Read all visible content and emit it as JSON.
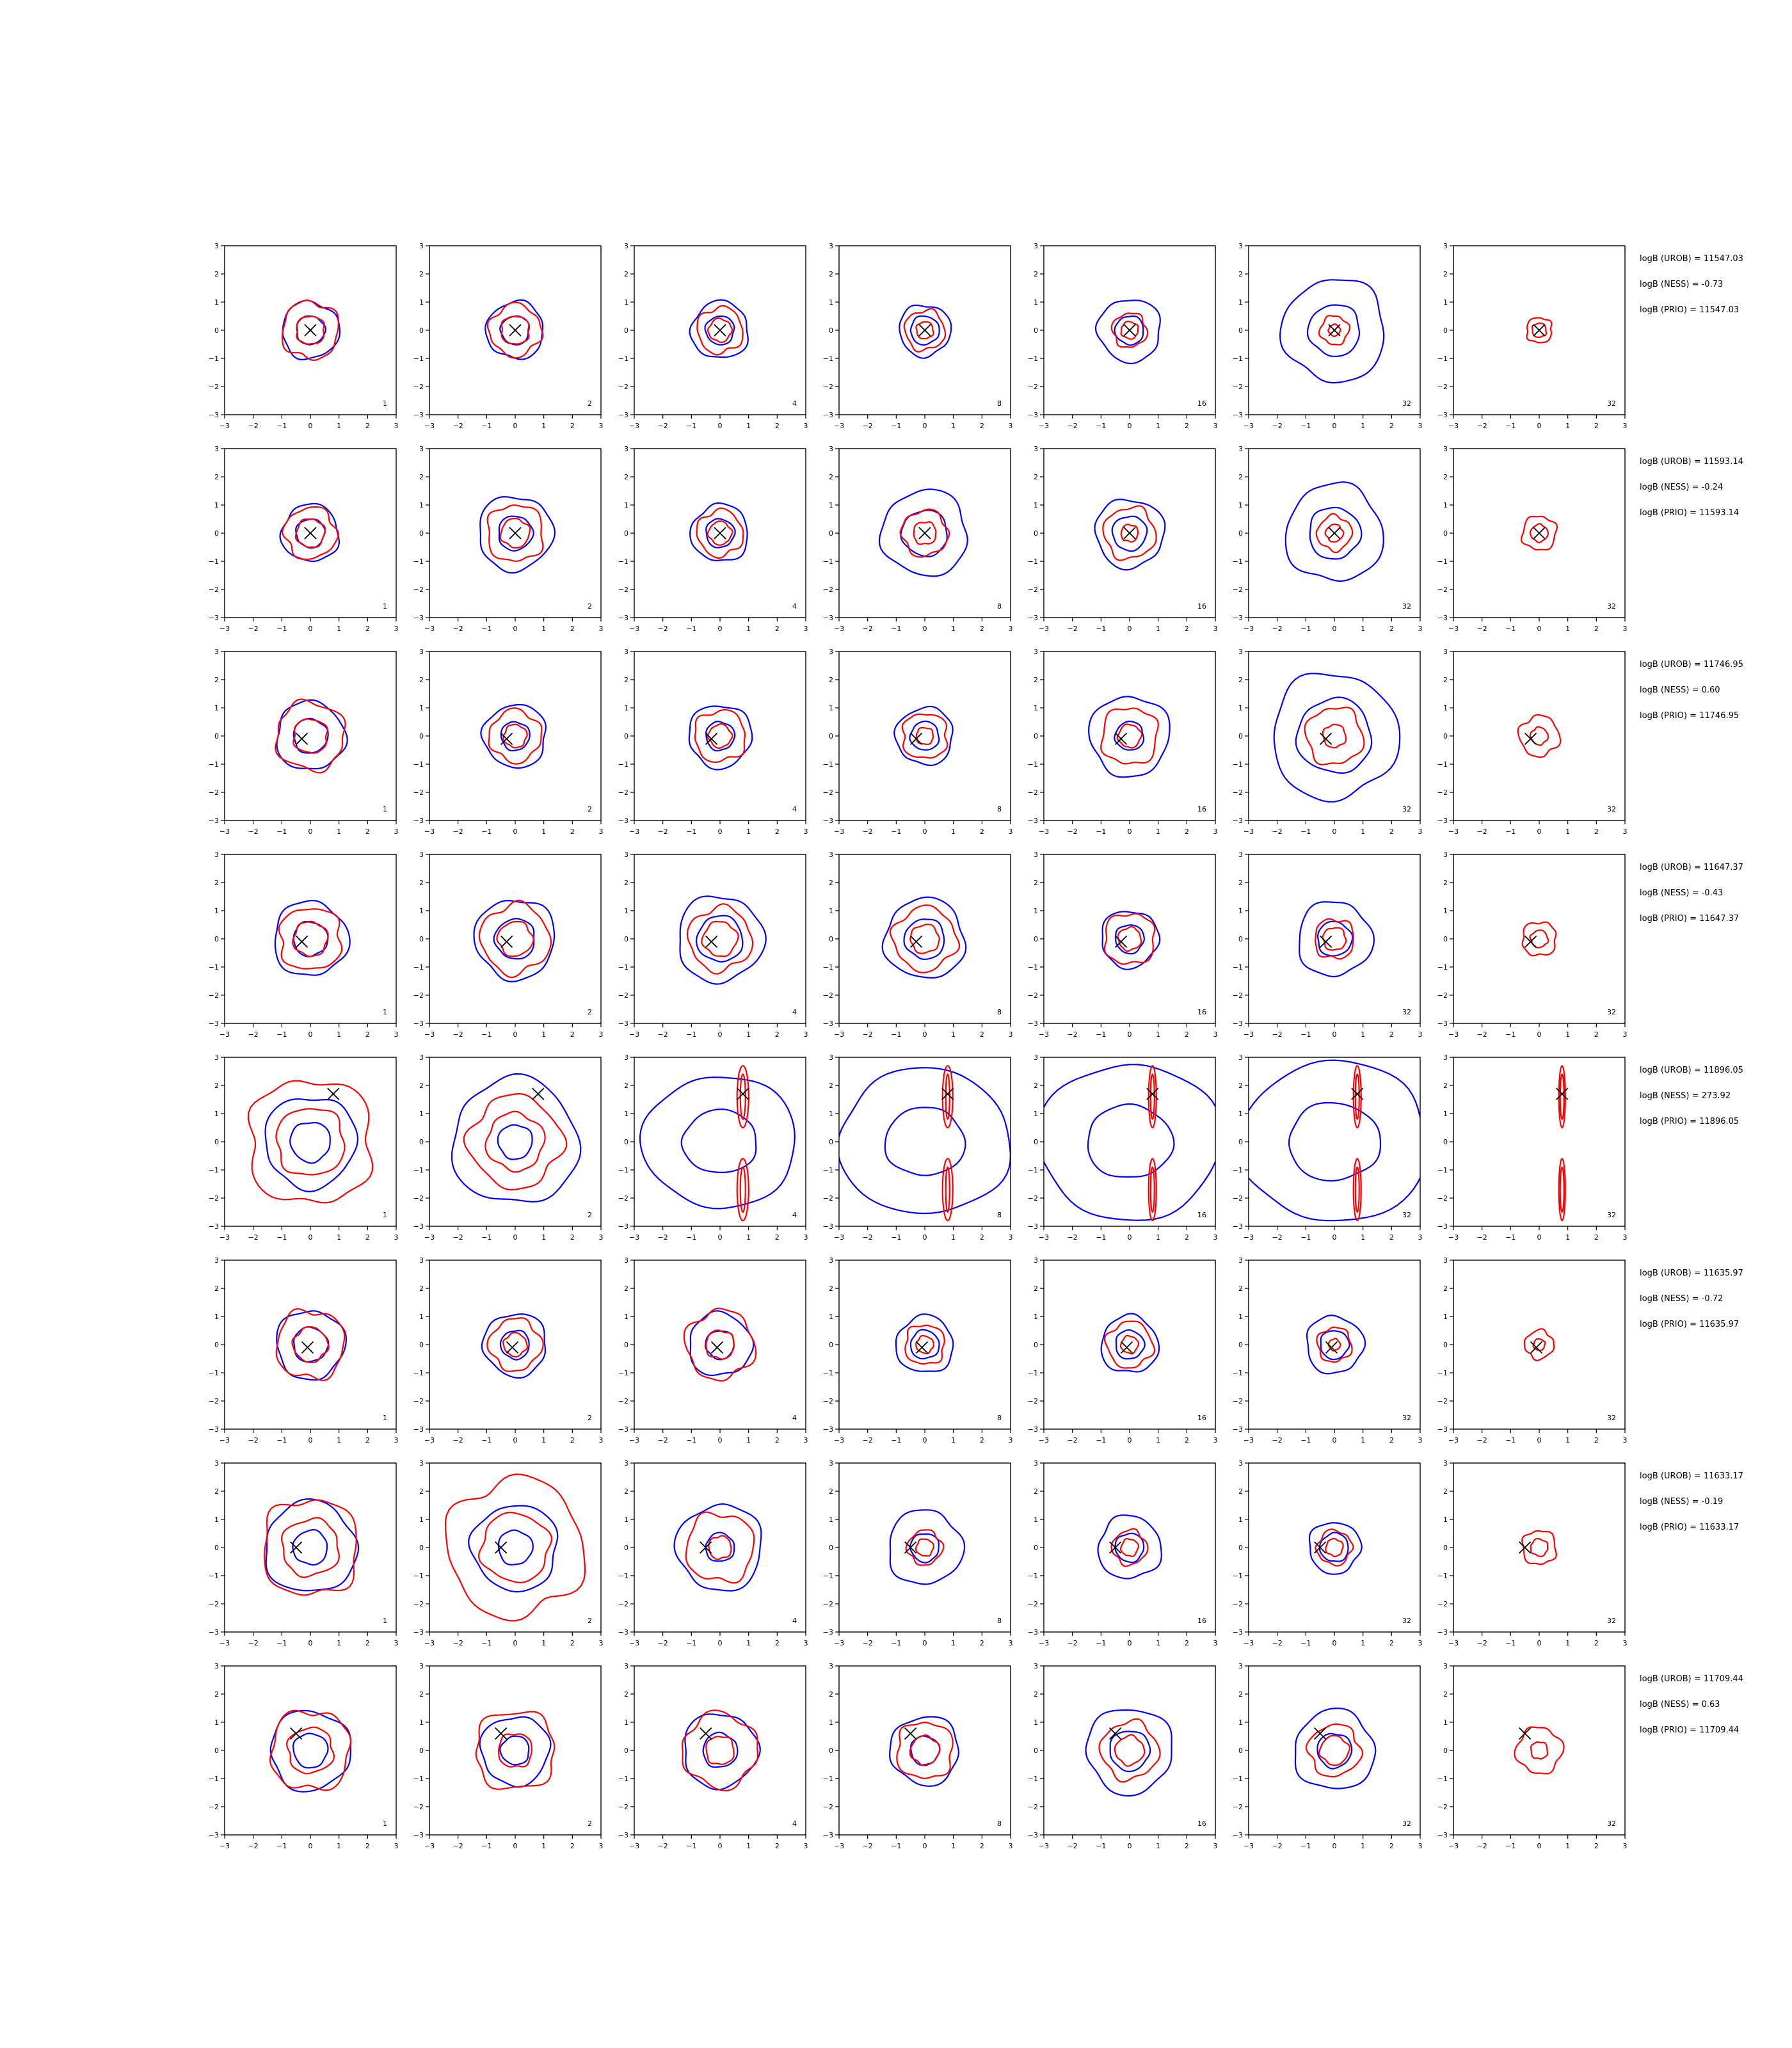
{
  "figure": {
    "columns": [
      "1",
      "2",
      "4",
      "8",
      "16",
      "32",
      "32"
    ],
    "axis_ticks": [
      "−3",
      "−2",
      "−1",
      "0",
      "1",
      "2",
      "3"
    ],
    "colors": {
      "blue": "#0000ff",
      "red": "#ff0000",
      "marker": "#000000",
      "axes": "#000000"
    },
    "rows": [
      {
        "stats": [
          "logB (UROB) = 11547.03",
          "logB (NESS) = -0.73",
          "logB (PRIO) = 11547.03"
        ]
      },
      {
        "stats": [
          "logB (UROB) = 11593.14",
          "logB (NESS) = -0.24",
          "logB (PRIO) = 11593.14"
        ]
      },
      {
        "stats": [
          "logB (UROB) = 11746.95",
          "logB (NESS) = 0.60",
          "logB (PRIO) = 11746.95"
        ]
      },
      {
        "stats": [
          "logB (UROB) = 11647.37",
          "logB (NESS) = -0.43",
          "logB (PRIO) = 11647.37"
        ]
      },
      {
        "stats": [
          "logB (UROB) = 11896.05",
          "logB (NESS) = 273.92",
          "logB (PRIO) = 11896.05"
        ]
      },
      {
        "stats": [
          "logB (UROB) = 11635.97",
          "logB (NESS) = -0.72",
          "logB (PRIO) = 11635.97"
        ]
      },
      {
        "stats": [
          "logB (UROB) = 11633.17",
          "logB (NESS) = -0.19",
          "logB (PRIO) = 11633.17"
        ]
      },
      {
        "stats": [
          "logB (UROB) = 11709.44",
          "logB (NESS) = 0.63",
          "logB (PRIO) = 11709.44"
        ]
      }
    ]
  },
  "chart_data": {
    "type": "contour",
    "grid_rows": 8,
    "grid_cols": 7,
    "xlim": [
      -3,
      3
    ],
    "ylim": [
      -3,
      3
    ],
    "xticks": [
      -3,
      -2,
      -1,
      0,
      1,
      2,
      3
    ],
    "yticks": [
      -3,
      -2,
      -1,
      0,
      1,
      2,
      3
    ],
    "panel_labels": [
      "1",
      "2",
      "4",
      "8",
      "16",
      "32",
      "32"
    ],
    "rows": [
      {
        "marker": [
          0.0,
          0.0
        ],
        "panels": [
          {
            "blue": [
              0.5,
              1.0
            ],
            "red": [
              0.5,
              1.0
            ]
          },
          {
            "blue": [
              0.5,
              1.0
            ],
            "red": [
              0.5,
              0.9
            ]
          },
          {
            "blue": [
              0.5,
              1.0
            ],
            "red": [
              0.4,
              0.8
            ]
          },
          {
            "blue": [
              0.5,
              0.9
            ],
            "red": [
              0.3,
              0.7
            ]
          },
          {
            "blue": [
              0.5,
              1.1
            ],
            "red": [
              0.3,
              0.6
            ]
          },
          {
            "blue": [
              0.9,
              1.8
            ],
            "red": [
              0.2,
              0.5
            ]
          },
          {
            "blue": [],
            "red": [
              0.25,
              0.45
            ]
          }
        ]
      },
      {
        "marker": [
          0.0,
          0.0
        ],
        "panels": [
          {
            "blue": [
              0.5,
              1.0
            ],
            "red": [
              0.5,
              0.9
            ]
          },
          {
            "blue": [
              0.6,
              1.3
            ],
            "red": [
              0.5,
              1.0
            ]
          },
          {
            "blue": [
              0.5,
              1.0
            ],
            "red": [
              0.4,
              0.8
            ]
          },
          {
            "blue": [
              0.8,
              1.5
            ],
            "red": [
              0.4,
              0.8
            ]
          },
          {
            "blue": [
              0.6,
              1.2
            ],
            "red": [
              0.3,
              0.9
            ]
          },
          {
            "blue": [
              0.9,
              1.7
            ],
            "red": [
              0.3,
              0.6
            ]
          },
          {
            "blue": [],
            "red": [
              0.3,
              0.6
            ]
          }
        ]
      },
      {
        "marker": [
          -0.3,
          -0.1
        ],
        "panels": [
          {
            "blue": [
              0.6,
              1.2
            ],
            "red": [
              0.6,
              1.2
            ]
          },
          {
            "blue": [
              0.5,
              1.1
            ],
            "red": [
              0.4,
              0.9
            ]
          },
          {
            "blue": [
              0.5,
              1.1
            ],
            "red": [
              0.4,
              0.9
            ]
          },
          {
            "blue": [
              0.5,
              1.0
            ],
            "red": [
              0.3,
              0.8
            ]
          },
          {
            "blue": [
              0.5,
              1.4
            ],
            "red": [
              0.4,
              1.0
            ]
          },
          {
            "blue": [
              1.3,
              2.2
            ],
            "red": [
              0.4,
              1.0
            ]
          },
          {
            "blue": [],
            "red": [
              0.3,
              0.7
            ]
          }
        ]
      },
      {
        "marker": [
          -0.3,
          -0.1
        ],
        "panels": [
          {
            "blue": [
              0.6,
              1.3
            ],
            "red": [
              0.6,
              1.1
            ]
          },
          {
            "blue": [
              0.7,
              1.4
            ],
            "red": [
              0.6,
              1.2
            ]
          },
          {
            "blue": [
              0.8,
              1.5
            ],
            "red": [
              0.6,
              1.1
            ]
          },
          {
            "blue": [
              0.7,
              1.4
            ],
            "red": [
              0.5,
              1.1
            ]
          },
          {
            "blue": [
              0.5,
              1.0
            ],
            "red": [
              0.4,
              0.9
            ]
          },
          {
            "blue": [
              0.6,
              1.3
            ],
            "red": [
              0.4,
              0.7
            ]
          },
          {
            "blue": [],
            "red": [
              0.3,
              0.6
            ]
          }
        ]
      },
      {
        "marker": [
          0.8,
          1.7
        ],
        "panels": [
          {
            "blue": [
              0.7,
              1.6
            ],
            "red": [
              1.2,
              2.2
            ]
          },
          {
            "blue": [
              0.6,
              2.2
            ],
            "red": [
              1.0,
              1.6
            ]
          },
          {
            "blue": [
              1.3,
              2.7
            ],
            "red": [
              0.2,
              0.35
            ]
          },
          {
            "blue": [
              1.4,
              3.0
            ],
            "red": [
              0.15,
              0.3
            ]
          },
          {
            "blue": [
              1.5,
              3.2
            ],
            "red": [
              0.1,
              0.2
            ]
          },
          {
            "blue": [
              1.6,
              3.3
            ],
            "red": [
              0.1,
              0.2
            ]
          },
          {
            "blue": [],
            "red": [
              0.08,
              0.15
            ]
          }
        ]
      },
      {
        "marker": [
          -0.1,
          -0.1
        ],
        "panels": [
          {
            "blue": [
              0.6,
              1.2
            ],
            "red": [
              0.6,
              1.2
            ]
          },
          {
            "blue": [
              0.5,
              1.1
            ],
            "red": [
              0.4,
              0.9
            ]
          },
          {
            "blue": [
              0.5,
              1.1
            ],
            "red": [
              0.5,
              1.2
            ]
          },
          {
            "blue": [
              0.5,
              1.0
            ],
            "red": [
              0.3,
              0.7
            ]
          },
          {
            "blue": [
              0.5,
              1.0
            ],
            "red": [
              0.3,
              0.8
            ]
          },
          {
            "blue": [
              0.5,
              1.0
            ],
            "red": [
              0.2,
              0.6
            ]
          },
          {
            "blue": [],
            "red": [
              0.2,
              0.5
            ]
          }
        ]
      },
      {
        "marker": [
          -0.5,
          0.0
        ],
        "panels": [
          {
            "blue": [
              0.6,
              1.6
            ],
            "red": [
              1.0,
              1.7
            ]
          },
          {
            "blue": [
              0.6,
              1.5
            ],
            "red": [
              1.2,
              2.4
            ]
          },
          {
            "blue": [
              0.5,
              1.5
            ],
            "red": [
              0.4,
              1.2
            ]
          },
          {
            "blue": [
              0.5,
              1.3
            ],
            "red": [
              0.3,
              0.6
            ]
          },
          {
            "blue": [
              0.5,
              1.1
            ],
            "red": [
              0.3,
              0.6
            ]
          },
          {
            "blue": [
              0.5,
              0.9
            ],
            "red": [
              0.3,
              0.6
            ]
          },
          {
            "blue": [],
            "red": [
              0.3,
              0.6
            ]
          }
        ]
      },
      {
        "marker": [
          -0.5,
          0.6
        ],
        "panels": [
          {
            "blue": [
              0.6,
              1.4
            ],
            "red": [
              0.8,
              1.4
            ]
          },
          {
            "blue": [
              0.5,
              1.2
            ],
            "red": [
              0.6,
              1.4
            ]
          },
          {
            "blue": [
              0.6,
              1.3
            ],
            "red": [
              0.5,
              1.3
            ]
          },
          {
            "blue": [
              0.5,
              1.2
            ],
            "red": [
              0.5,
              1.0
            ]
          },
          {
            "blue": [
              0.7,
              1.5
            ],
            "red": [
              0.5,
              1.0
            ]
          },
          {
            "blue": [
              0.6,
              1.4
            ],
            "red": [
              0.5,
              0.9
            ]
          },
          {
            "blue": [],
            "red": [
              0.3,
              0.8
            ]
          }
        ]
      }
    ]
  }
}
